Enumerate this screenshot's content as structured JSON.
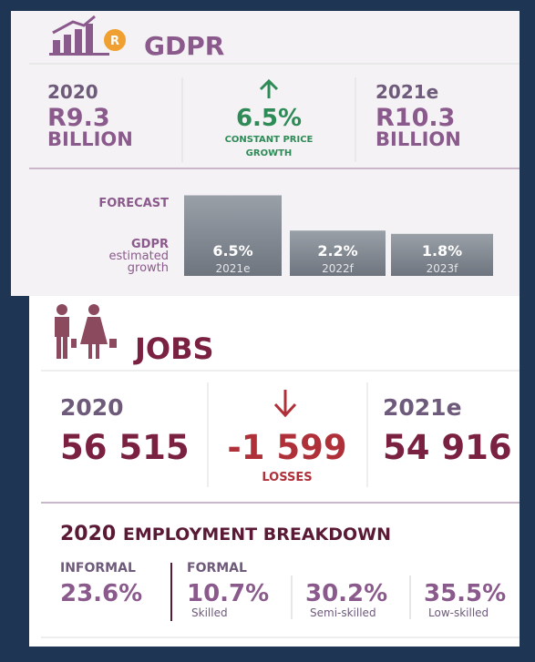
{
  "gdpr": {
    "title": "GDPR",
    "badge": "R",
    "left": {
      "year": "2020",
      "value": "R9.3",
      "unit": "BILLION"
    },
    "middle": {
      "value": "6.5%",
      "line1": "CONSTANT PRICE",
      "line2": "GROWTH"
    },
    "right": {
      "year": "2021e",
      "value": "R10.3",
      "unit": "BILLION"
    },
    "forecast": {
      "label": "FORECAST",
      "axis_title": "GDPR",
      "axis_sub1": "estimated",
      "axis_sub2": "growth",
      "categories": [
        "2021e",
        "2022f",
        "2023f"
      ],
      "values": [
        6.5,
        2.2,
        1.8
      ],
      "value_labels": [
        "6.5%",
        "2.2%",
        "1.8%"
      ]
    }
  },
  "jobs": {
    "title": "JOBS",
    "left": {
      "year": "2020",
      "value": "56 515"
    },
    "middle": {
      "value": "-1 599",
      "label": "LOSSES"
    },
    "right": {
      "year": "2021e",
      "value": "54 916"
    }
  },
  "breakdown": {
    "year": "2020",
    "title": "EMPLOYMENT BREAKDOWN",
    "informal": {
      "label": "INFORMAL",
      "value": "23.6%"
    },
    "formal": {
      "label": "FORMAL",
      "items": [
        {
          "value": "10.7%",
          "label": "Skilled"
        },
        {
          "value": "30.2%",
          "label": "Semi-skilled"
        },
        {
          "value": "35.5%",
          "label": "Low-skilled"
        }
      ]
    }
  }
}
